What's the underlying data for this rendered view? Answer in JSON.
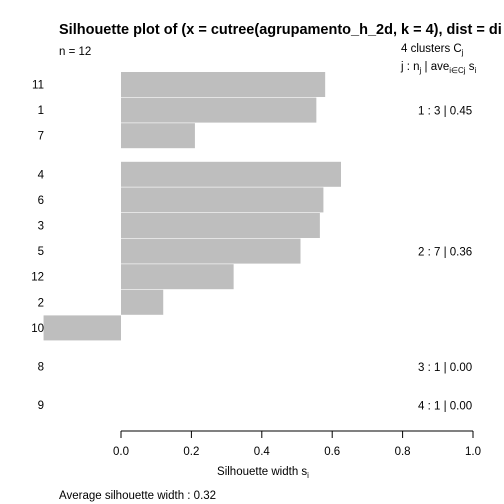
{
  "chart_data": {
    "type": "bar",
    "orientation": "horizontal",
    "title": "Silhouette plot of (x = cutree(agrupamento_h_2d, k = 4), dist = di",
    "subtitle": "n = 12",
    "xlabel": "Silhouette width s",
    "xlabel_sub": "i",
    "xlim": [
      -0.2,
      1.0
    ],
    "xticks": [
      0.0,
      0.2,
      0.4,
      0.6,
      0.8,
      1.0
    ],
    "xtick_labels": [
      "0.0",
      "0.2",
      "0.4",
      "0.6",
      "0.8",
      "1.0"
    ],
    "bar_color": "#bebebe",
    "legend": {
      "line1_prefix": "4  clusters  C",
      "line1_sub": "j",
      "line2_j": "j :  n",
      "line2_j_sub": "j",
      "line2_mid": " | ave",
      "line2_mid_sub": "i∈Cj",
      "line2_s": "  s",
      "line2_s_sub": "i"
    },
    "clusters": [
      {
        "label": "1 :  3  |  0.45",
        "items": [
          {
            "id": "11",
            "value": 0.58
          },
          {
            "id": "1",
            "value": 0.555
          },
          {
            "id": "7",
            "value": 0.21
          }
        ]
      },
      {
        "label": "2 :  7  |  0.36",
        "items": [
          {
            "id": "4",
            "value": 0.625
          },
          {
            "id": "6",
            "value": 0.575
          },
          {
            "id": "3",
            "value": 0.565
          },
          {
            "id": "5",
            "value": 0.51
          },
          {
            "id": "12",
            "value": 0.32
          },
          {
            "id": "2",
            "value": 0.12
          },
          {
            "id": "10",
            "value": -0.22
          }
        ]
      },
      {
        "label": "3 :  1  |  0.00",
        "items": [
          {
            "id": "8",
            "value": 0.0
          }
        ]
      },
      {
        "label": "4 :  1  |  0.00",
        "items": [
          {
            "id": "9",
            "value": 0.0
          }
        ]
      }
    ],
    "footer": "Average silhouette width :  0.32"
  }
}
